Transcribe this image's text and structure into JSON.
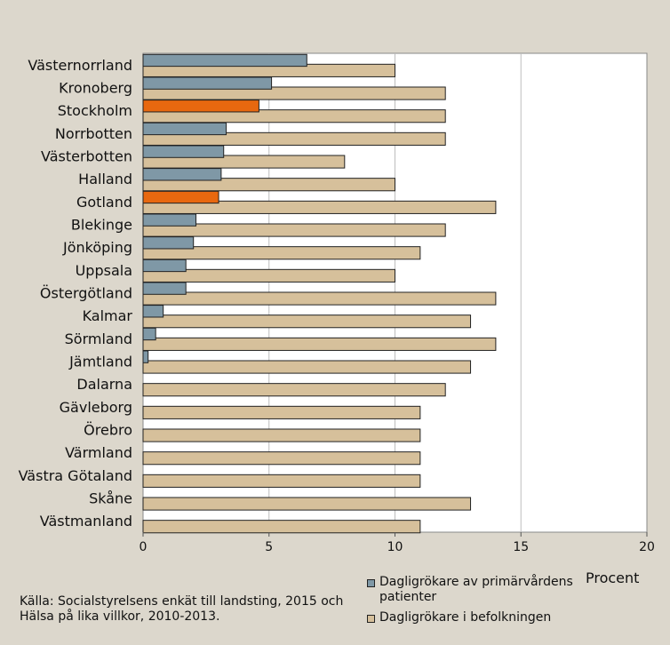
{
  "chart_data": {
    "type": "bar",
    "orientation": "horizontal",
    "categories": [
      "Västernorrland",
      "Kronoberg",
      "Stockholm",
      "Norrbotten",
      "Västerbotten",
      "Halland",
      "Gotland",
      "Blekinge",
      "Jönköping",
      "Uppsala",
      "Östergötland",
      "Kalmar",
      "Sörmland",
      "Jämtland",
      "Dalarna",
      "Gävleborg",
      "Örebro",
      "Värmland",
      "Västra Götaland",
      "Skåne",
      "Västmanland"
    ],
    "series": [
      {
        "name": "Dagligrökare av primärvårdens patienter",
        "values": [
          6.5,
          5.1,
          4.6,
          3.3,
          3.2,
          3.1,
          3.0,
          2.1,
          2.0,
          1.7,
          1.7,
          0.8,
          0.5,
          0.2,
          null,
          null,
          null,
          null,
          null,
          null,
          null
        ]
      },
      {
        "name": "Dagligrökare i befolkningen",
        "values": [
          10,
          12,
          12,
          12,
          8,
          10,
          14,
          12,
          11,
          10,
          14,
          13,
          14,
          13,
          12,
          11,
          11,
          11,
          11,
          13,
          11
        ]
      }
    ],
    "highlight_categories": [
      "Stockholm",
      "Gotland"
    ],
    "xlim": [
      0,
      20
    ],
    "xticks": [
      "0",
      "5",
      "10",
      "15",
      "20"
    ],
    "xlabel": "Procent",
    "grid": "vertical",
    "colors": {
      "series1": "#7f98a6",
      "series1_highlight": "#e8680f",
      "series2": "#d6c09b",
      "plot_bg": "#ffffff",
      "page_bg": "#dcd7cc"
    }
  },
  "source": {
    "line1": "Källa: Socialstyrelsens enkät till landsting, 2015 och",
    "line2": "Hälsa på lika villkor, 2010-2013."
  },
  "legend": {
    "item1_line1": "Dagligrökare av primärvårdens",
    "item1_line2": "patienter",
    "item2": "Dagligrökare i befolkningen"
  }
}
